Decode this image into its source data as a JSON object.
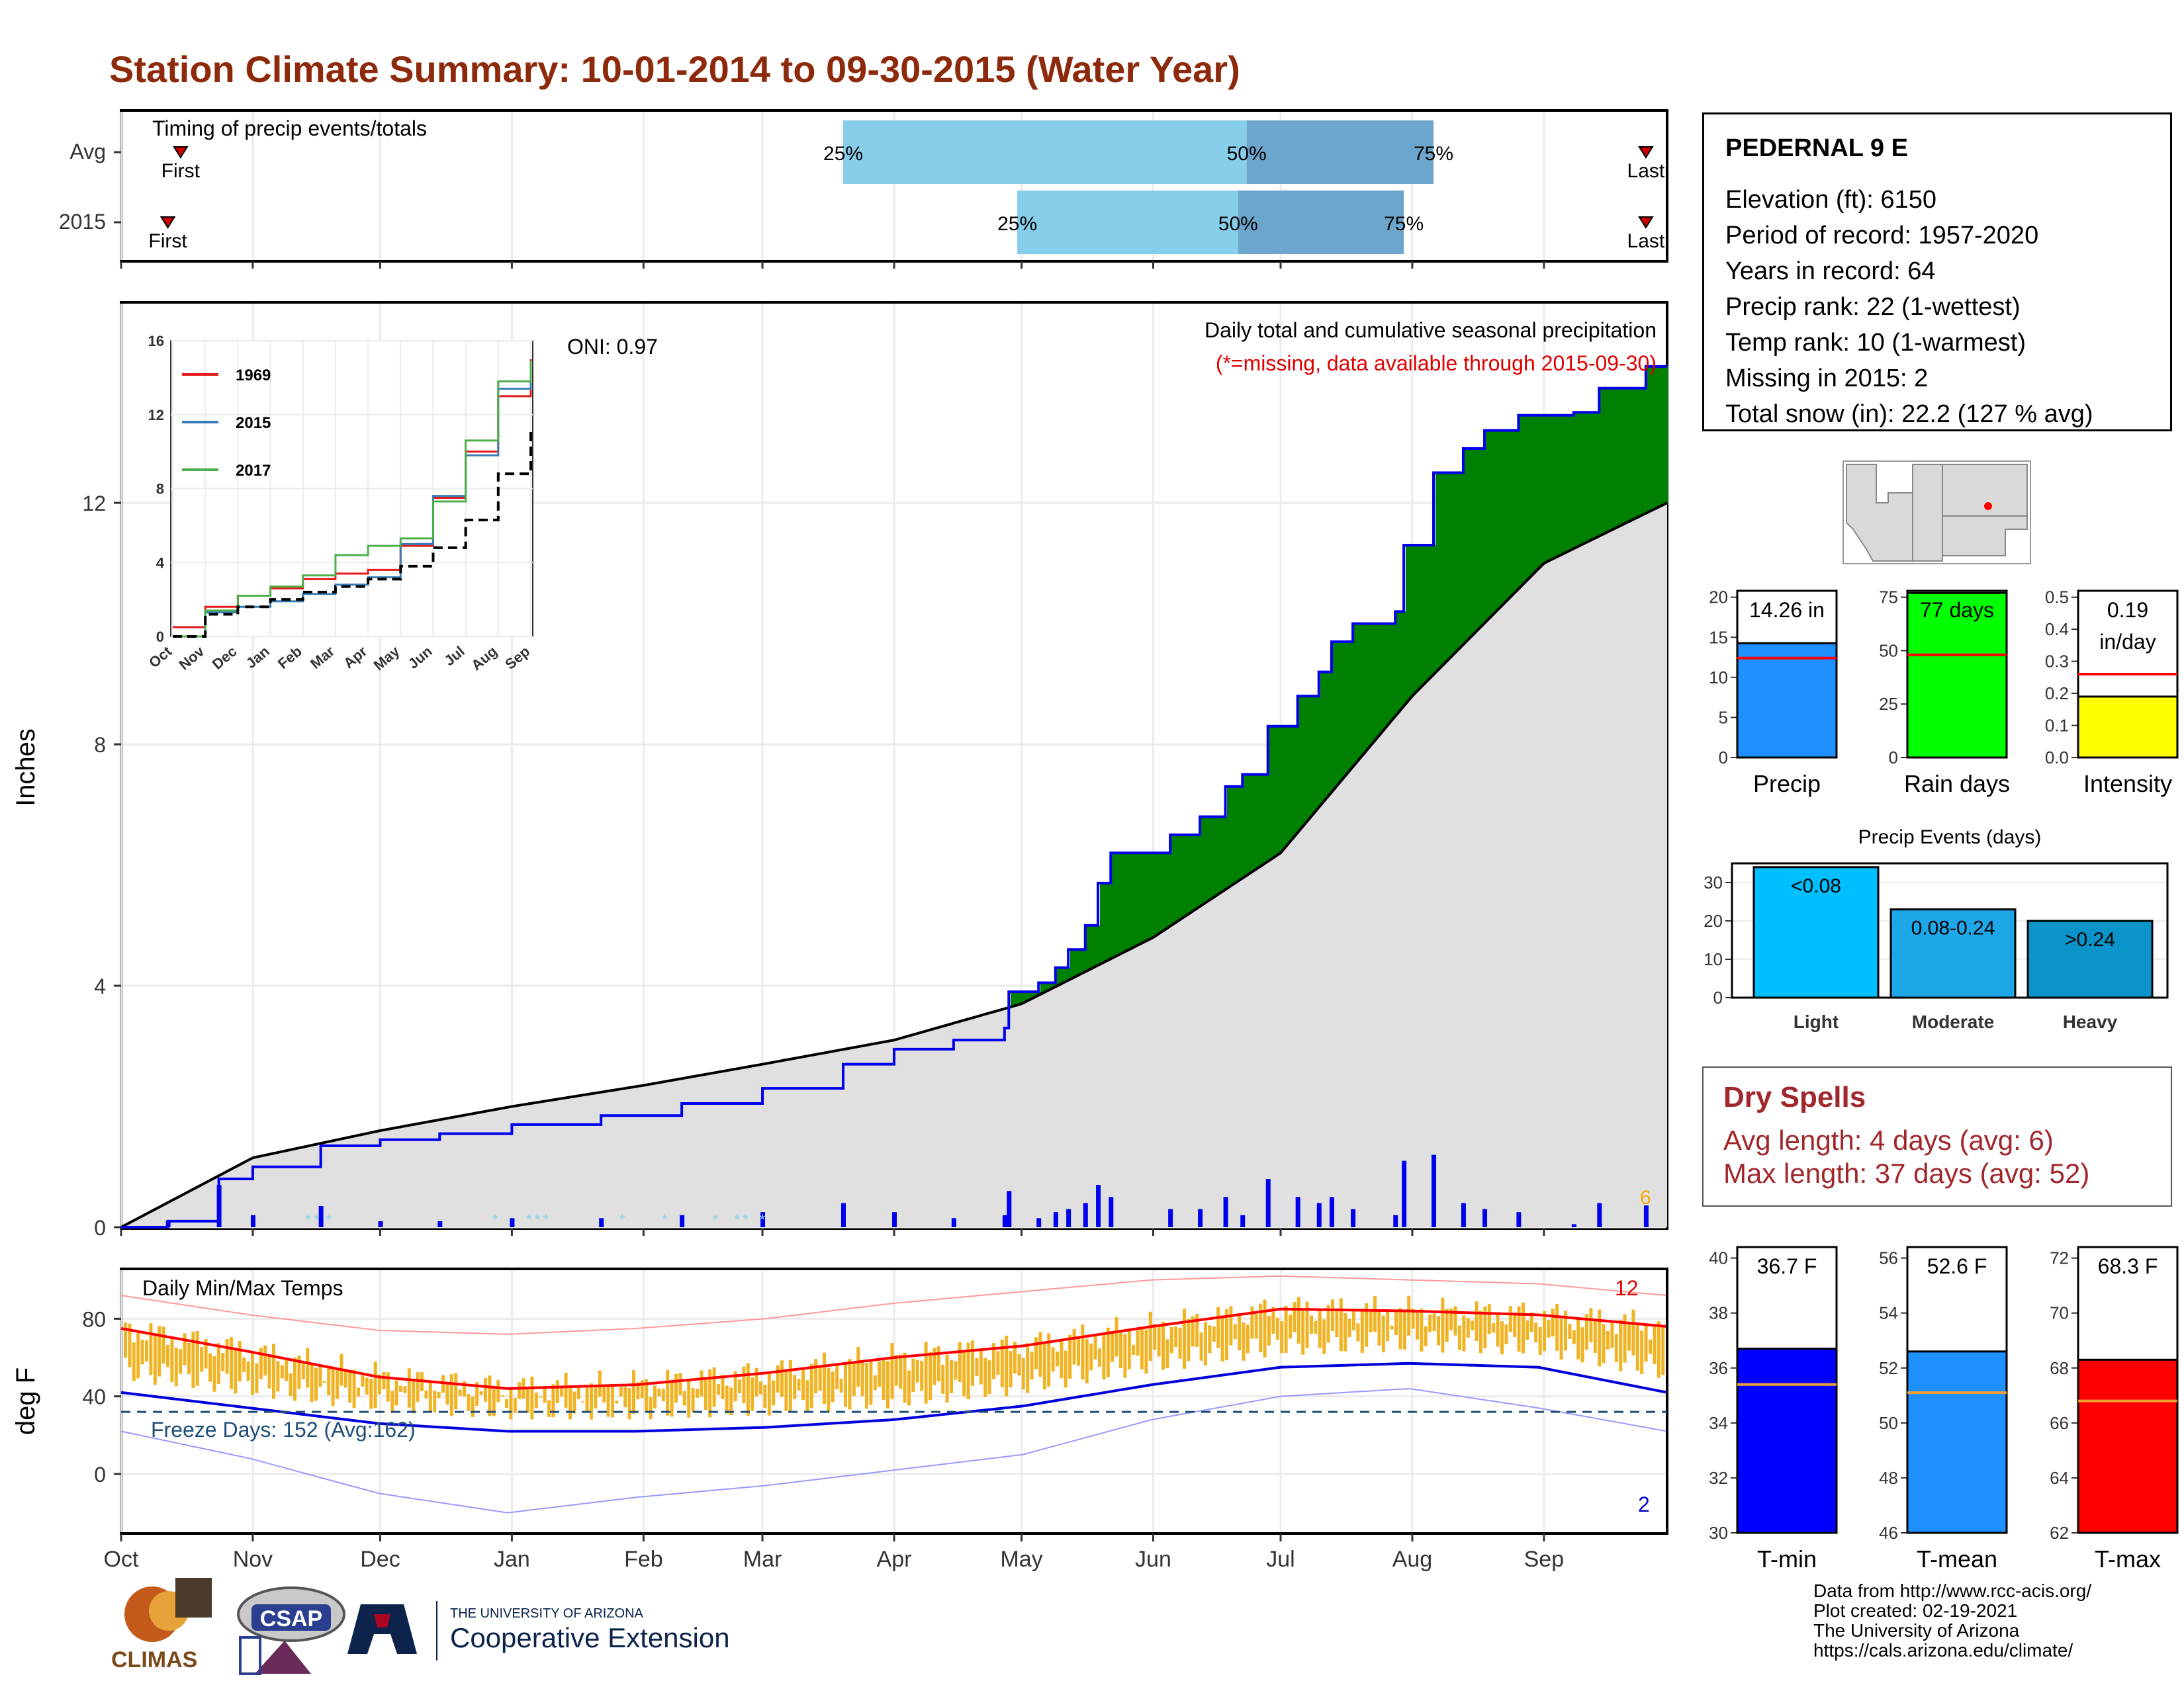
{
  "title": "Station Climate Summary: 10-01-2014 to 09-30-2015 (Water Year)",
  "timing": {
    "label": "Timing of precip events/totals",
    "rows": [
      {
        "name": "Avg",
        "first_label": "First",
        "last_label": "Last",
        "p25": "25%",
        "p50": "50%",
        "p75": "75%"
      },
      {
        "name": "2015",
        "first_label": "First",
        "last_label": "Last",
        "p25": "25%",
        "p50": "50%",
        "p75": "75%"
      }
    ]
  },
  "station": {
    "name": "PEDERNAL 9 E",
    "lines": [
      "Elevation (ft): 6150",
      "Period of record: 1957-2020",
      "Years in record: 64",
      "Precip rank: 22 (1-wettest)",
      "Temp rank: 10 (1-warmest)",
      "Missing in 2015: 2",
      "Total snow (in): 22.2 (127 % avg)"
    ]
  },
  "precip_panel": {
    "ylabel": "Inches",
    "caption": "Daily total and cumulative seasonal precipitation",
    "missing_note": "(*=missing, data available through 2015-09-30)",
    "oni": "ONI: 0.97",
    "end_label": "6",
    "y_ticks": [
      "0",
      "4",
      "8",
      "12"
    ]
  },
  "months": [
    "Oct",
    "Nov",
    "Dec",
    "Jan",
    "Feb",
    "Mar",
    "Apr",
    "May",
    "Jun",
    "Jul",
    "Aug",
    "Sep"
  ],
  "inset": {
    "x_ticks": [
      "Oct",
      "Nov",
      "Dec",
      "Jan",
      "Feb",
      "Mar",
      "Apr",
      "May",
      "Jun",
      "Jul",
      "Aug",
      "Sep"
    ],
    "y_ticks": [
      "0",
      "4",
      "8",
      "12",
      "16"
    ],
    "legend": [
      {
        "name": "1969",
        "color": "#e41a1c"
      },
      {
        "name": "2015",
        "color": "#377eb8"
      },
      {
        "name": "2017",
        "color": "#4daf4a"
      }
    ]
  },
  "temp_panel": {
    "ylabel": "deg F",
    "title": "Daily Min/Max Temps",
    "freeze": "Freeze Days: 152 (Avg:162)",
    "count_hot": "12",
    "count_cold": "2",
    "y_ticks": [
      "0",
      "40",
      "80"
    ]
  },
  "bars_small": [
    {
      "label": "Precip",
      "value_text": "14.26 in",
      "color": "#1e90ff",
      "ticks": [
        "0",
        "5",
        "10",
        "15",
        "20"
      ]
    },
    {
      "label": "Rain days",
      "value_text": "77 days",
      "color": "#00ff00",
      "ticks": [
        "0",
        "25",
        "50",
        "75"
      ]
    },
    {
      "label": "Intensity",
      "value_text": "0.19",
      "value_text2": "in/day",
      "color": "#ffff00",
      "ticks": [
        "0.0",
        "0.1",
        "0.2",
        "0.3",
        "0.4",
        "0.5"
      ]
    }
  ],
  "events": {
    "title": "Precip Events (days)",
    "ticks": [
      "0",
      "10",
      "20",
      "30"
    ],
    "bars": [
      {
        "label": "Light",
        "value_text": "<0.08",
        "color": "#00bfff"
      },
      {
        "label": "Moderate",
        "value_text": "0.08-0.24",
        "color": "#1ea7e8"
      },
      {
        "label": "Heavy",
        "value_text": ">0.24",
        "color": "#0b94c9"
      }
    ]
  },
  "dry_spells": {
    "title": "Dry Spells",
    "avg": "Avg length: 4 days (avg: 6)",
    "max": "Max length: 37 days (avg: 52)"
  },
  "temps_small": [
    {
      "label": "T-min",
      "value_text": "36.7 F",
      "color": "#0000ff",
      "ticks": [
        "30",
        "32",
        "34",
        "36",
        "38",
        "40"
      ]
    },
    {
      "label": "T-mean",
      "value_text": "52.6 F",
      "color": "#1e90ff",
      "ticks": [
        "46",
        "48",
        "50",
        "52",
        "54",
        "56"
      ]
    },
    {
      "label": "T-max",
      "value_text": "68.3 F",
      "color": "#ff0000",
      "ticks": [
        "62",
        "64",
        "66",
        "68",
        "70",
        "72"
      ]
    }
  ],
  "footer": [
    "Data from http://www.rcc-acis.org/",
    "Plot created: 02-19-2021",
    "The University of Arizona",
    "https://cals.arizona.edu/climate/"
  ],
  "logos": {
    "climas": "CLIMAS",
    "csap": "CSAP",
    "uofa_small": "THE UNIVERSITY OF ARIZONA",
    "uofa_big": "Cooperative Extension"
  },
  "chart_data": [
    {
      "type": "bar",
      "name": "timing",
      "categories": [
        "Avg",
        "2015"
      ],
      "series": [
        {
          "name": "25%",
          "values": [
            "2015-03-20",
            "2015-04-30"
          ]
        },
        {
          "name": "50%",
          "values": [
            "2015-06-23",
            "2015-06-21"
          ]
        },
        {
          "name": "75%",
          "values": [
            "2015-08-06",
            "2015-07-30"
          ]
        }
      ],
      "first": [
        "2014-10-15",
        "2014-10-12"
      ],
      "last": [
        "2015-09-25",
        "2015-09-25"
      ]
    },
    {
      "type": "area",
      "name": "cumulative precipitation",
      "ylabel": "Inches",
      "ylim": [
        0,
        15
      ],
      "series": [
        {
          "name": "2015",
          "x": [
            "2014-10-01",
            "2014-10-12",
            "2014-10-24",
            "2014-11-01",
            "2014-11-16",
            "2014-11-17",
            "2014-12-01",
            "2014-12-15",
            "2015-01-01",
            "2015-01-22",
            "2015-02-10",
            "2015-03-01",
            "2015-03-20",
            "2015-04-01",
            "2015-04-15",
            "2015-04-27",
            "2015-04-28",
            "2015-05-05",
            "2015-05-09",
            "2015-05-12",
            "2015-05-16",
            "2015-05-19",
            "2015-05-22",
            "2015-06-01",
            "2015-06-05",
            "2015-06-12",
            "2015-06-18",
            "2015-06-22",
            "2015-06-28",
            "2015-07-05",
            "2015-07-10",
            "2015-07-13",
            "2015-07-18",
            "2015-07-28",
            "2015-07-30",
            "2015-08-06",
            "2015-08-13",
            "2015-08-18",
            "2015-08-26",
            "2015-09-08",
            "2015-09-14",
            "2015-09-25",
            "2015-09-30"
          ],
          "values": [
            0,
            0.1,
            0.8,
            1.0,
            1.0,
            1.35,
            1.45,
            1.55,
            1.7,
            1.85,
            2.05,
            2.3,
            2.7,
            2.95,
            3.1,
            3.3,
            3.9,
            4.05,
            4.3,
            4.6,
            5.0,
            5.7,
            6.2,
            6.2,
            6.5,
            6.8,
            7.3,
            7.5,
            8.3,
            8.8,
            9.2,
            9.7,
            10.0,
            10.2,
            11.3,
            12.5,
            12.9,
            13.2,
            13.45,
            13.5,
            13.9,
            14.26,
            14.26
          ]
        },
        {
          "name": "Avg",
          "x": [
            "2014-10-01",
            "2014-11-01",
            "2014-12-01",
            "2015-01-01",
            "2015-02-01",
            "2015-03-01",
            "2015-04-01",
            "2015-05-01",
            "2015-06-01",
            "2015-07-01",
            "2015-08-01",
            "2015-09-01",
            "2015-09-30"
          ],
          "values": [
            0,
            1.15,
            1.6,
            2.0,
            2.35,
            2.7,
            3.1,
            3.7,
            4.8,
            6.2,
            8.8,
            11.0,
            12.0
          ]
        }
      ]
    },
    {
      "type": "line",
      "name": "inset cumulative",
      "ylim": [
        0,
        16
      ],
      "series": [
        {
          "name": "1969",
          "values": [
            0.5,
            1.6,
            2.2,
            2.6,
            3.1,
            3.4,
            3.6,
            4.9,
            7.5,
            10.0,
            13.0,
            15.0
          ]
        },
        {
          "name": "2015",
          "values": [
            0.0,
            1.3,
            1.6,
            1.9,
            2.3,
            2.8,
            3.2,
            5.0,
            7.6,
            9.8,
            13.4,
            14.3
          ]
        },
        {
          "name": "2017",
          "values": [
            0.0,
            1.4,
            2.2,
            2.7,
            3.3,
            4.4,
            4.9,
            5.3,
            7.3,
            10.6,
            13.8,
            14.9
          ]
        },
        {
          "name": "Avg",
          "values": [
            0.0,
            1.2,
            1.6,
            2.0,
            2.4,
            2.7,
            3.1,
            3.8,
            4.8,
            6.3,
            8.8,
            11.1
          ]
        }
      ]
    },
    {
      "type": "line",
      "name": "temperature",
      "ylabel": "deg F",
      "ylim": [
        -30,
        105
      ],
      "x": [
        "Oct",
        "Nov",
        "Dec",
        "Jan",
        "Feb",
        "Mar",
        "Apr",
        "May",
        "Jun",
        "Jul",
        "Aug",
        "Sep",
        "Oct-end"
      ],
      "series": [
        {
          "name": "avg max",
          "values": [
            75,
            63,
            50,
            44,
            46,
            52,
            60,
            66,
            76,
            85,
            84,
            82,
            76
          ]
        },
        {
          "name": "avg min",
          "values": [
            42,
            34,
            26,
            22,
            22,
            24,
            28,
            35,
            46,
            55,
            57,
            55,
            42
          ]
        },
        {
          "name": "record max",
          "values": [
            92,
            82,
            74,
            72,
            75,
            80,
            88,
            94,
            100,
            102,
            100,
            98,
            92
          ]
        },
        {
          "name": "record min",
          "values": [
            22,
            8,
            -10,
            -20,
            -12,
            -6,
            2,
            10,
            28,
            40,
            44,
            34,
            22
          ]
        }
      ],
      "freeze_threshold": 32
    },
    {
      "type": "bar",
      "name": "summary precip",
      "categories": [
        "Precip",
        "Rain days",
        "Intensity"
      ],
      "values": [
        14.26,
        77,
        0.19
      ],
      "averages": [
        12.4,
        48,
        0.26
      ]
    },
    {
      "type": "bar",
      "name": "Precip Events (days)",
      "categories": [
        "Light",
        "Moderate",
        "Heavy"
      ],
      "values": [
        34,
        23,
        20
      ],
      "ylim": [
        0,
        35
      ]
    },
    {
      "type": "bar",
      "name": "summary temps",
      "categories": [
        "T-min",
        "T-mean",
        "T-max"
      ],
      "values": [
        36.7,
        52.6,
        68.3
      ],
      "averages": [
        35.4,
        51.1,
        66.8
      ]
    }
  ]
}
